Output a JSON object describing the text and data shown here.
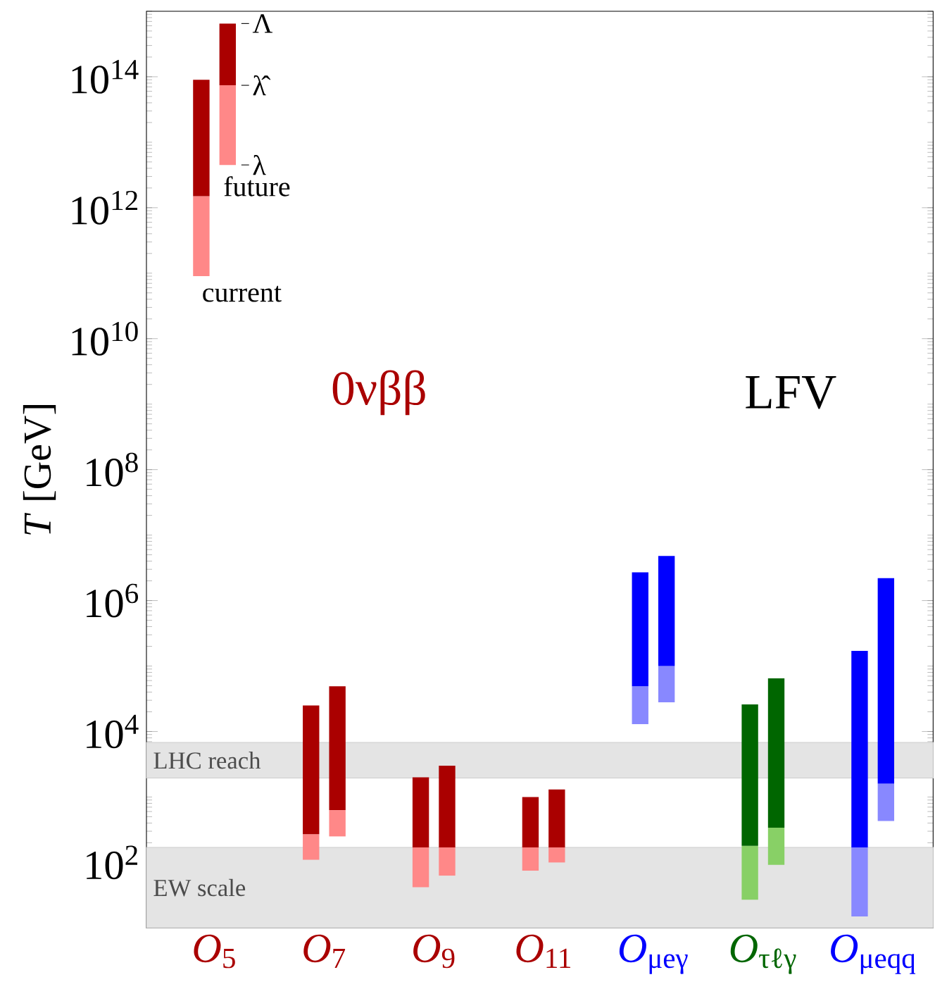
{
  "chart_data": {
    "type": "bar",
    "ylabel": "*T* [GeV]",
    "categories": [
      "*O*$_{5}$",
      "*O*$_{7}$",
      "*O*$_{9}$",
      "*O*$_{11}$",
      "*O*$_{μeγ}$",
      "*O*$_{τℓγ}$",
      "*O*$_{μeqq}$"
    ],
    "series": [
      {
        "base": [
          90000000000.0,
          110,
          42,
          75,
          13000,
          27,
          15
        ],
        "values": [
          1410000000000.0,
          160,
          128,
          95,
          36000,
          153,
          155
        ],
        "colors": [
          "#ff8888",
          "#ff8888",
          "#ff8888",
          "#ff8888",
          "#8888ff",
          "#88d066",
          "#8888ff"
        ]
      },
      {
        "base": [
          1500000000000.0,
          270,
          170,
          170,
          49000,
          180,
          170
        ],
        "values": [
          88500000000000.0,
          24730,
          1830,
          830,
          2651000,
          25820,
          169830
        ],
        "colors": [
          "#aa0000",
          "#aa0000",
          "#aa0000",
          "#aa0000",
          "#0000ff",
          "#006600",
          "#0000ff"
        ]
      },
      {
        "base": [
          4500000000000.0,
          250,
          63,
          100,
          28000,
          92,
          430
        ],
        "values": [
          69500000000000.0,
          380,
          107,
          70,
          72000,
          248,
          1170
        ],
        "colors": [
          "#ff8888",
          "#ff8888",
          "#ff8888",
          "#ff8888",
          "#8888ff",
          "#88d066",
          "#8888ff"
        ]
      },
      {
        "base": [
          74000000000000.0,
          630,
          170,
          170,
          100000,
          340,
          1600
        ],
        "values": [
          576000000000000.0,
          48370,
          2830,
          1130,
          4700000,
          64660,
          2198400
        ],
        "colors": [
          "#aa0000",
          "#aa0000",
          "#aa0000",
          "#aa0000",
          "#0000ff",
          "#006600",
          "#0000ff"
        ]
      }
    ],
    "log": true,
    "ylim": [
      10,
      1000000000000000.0
    ],
    "yticks": [
      {
        "value": 100,
        "label": "10$^{2}$"
      },
      {
        "value": 10000,
        "label": "10$^{4}$"
      },
      {
        "value": 1000000,
        "label": "10$^{6}$"
      },
      {
        "value": 100000000,
        "label": "10$^{8}$"
      },
      {
        "value": 10000000000,
        "label": "10$^{10}$"
      },
      {
        "value": 1000000000000,
        "label": "10$^{12}$"
      },
      {
        "value": 100000000000000,
        "label": "10$^{14}$"
      }
    ],
    "bands": [
      {
        "axis": "y",
        "from": 10,
        "to": 170,
        "label": "EW scale",
        "color": "#e4e4e4"
      },
      {
        "axis": "y",
        "from": 1950,
        "to": 6800,
        "label": "LHC reach",
        "color": "#e4e4e4"
      }
    ],
    "annotations": [
      "current",
      "future",
      "Λ",
      "λ̂",
      "λ",
      "0νββ",
      "LFV"
    ]
  }
}
